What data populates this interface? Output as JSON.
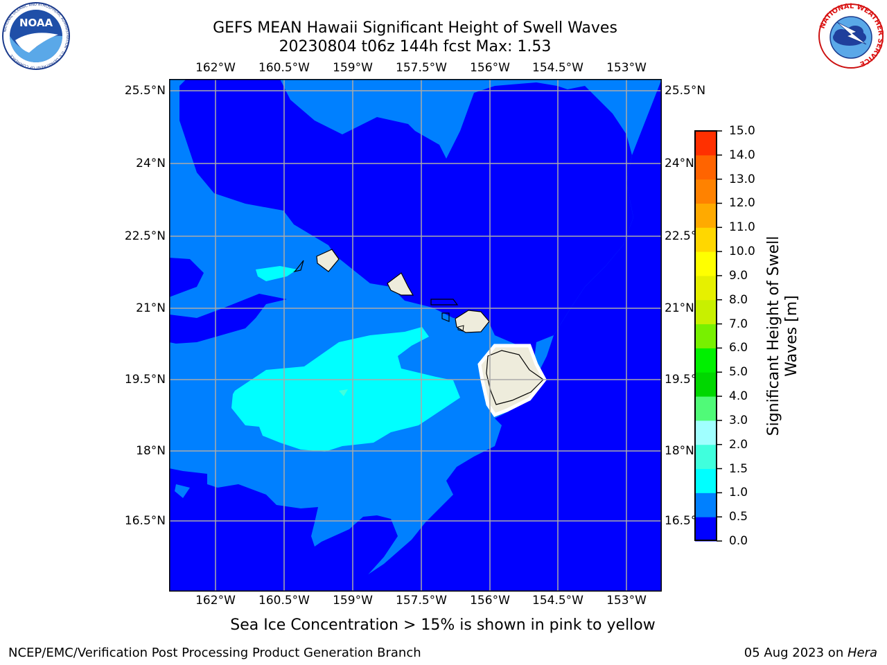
{
  "header": {
    "title_line1": "GEFS MEAN Hawaii Significant Height of Swell Waves",
    "title_line2": "20230804 t06z 144h fcst   Max: 1.53"
  },
  "logos": {
    "left": {
      "name": "noaa-logo",
      "text": "NOAA",
      "ring_text": "NATIONAL OCEANIC AND ATMOSPHERIC ADMINISTRATION · U.S. DEPARTMENT OF COMMERCE"
    },
    "right": {
      "name": "nws-logo",
      "ring_text": "NATIONAL WEATHER SERVICE"
    }
  },
  "map": {
    "longitude_ticks": [
      "162°W",
      "160.5°W",
      "159°W",
      "157.5°W",
      "156°W",
      "154.5°W",
      "153°W"
    ],
    "latitude_ticks": [
      "25.5°N",
      "24°N",
      "22.5°N",
      "21°N",
      "19.5°N",
      "18°N",
      "16.5°N"
    ],
    "lon_range": [
      -163,
      -152.3
    ],
    "lat_range": [
      15.3,
      25.7
    ],
    "grid": true,
    "land_color": "#eeecdc",
    "islands": [
      "Niihau",
      "Kauai",
      "Oahu",
      "Molokai",
      "Lanai",
      "Maui",
      "Kahoolawe",
      "Hawaii"
    ]
  },
  "colorbar": {
    "label_line1": "Significant Height of Swell",
    "label_line2": "Waves [m]",
    "levels": [
      "0.0",
      "0.5",
      "1.0",
      "1.5",
      "2.0",
      "3.0",
      "4.0",
      "5.0",
      "6.0",
      "7.0",
      "8.0",
      "9.0",
      "10.0",
      "11.0",
      "12.0",
      "13.0",
      "14.0",
      "15.0"
    ],
    "colors": [
      "#0000ff",
      "#0080ff",
      "#00ffff",
      "#40ffdd",
      "#a0ffff",
      "#50fa78",
      "#00d700",
      "#00f000",
      "#78f000",
      "#c8f000",
      "#e6f000",
      "#ffff00",
      "#ffd700",
      "#ffaa00",
      "#ff8200",
      "#ff6400",
      "#ff3000",
      "#ff0000"
    ]
  },
  "chart_data": {
    "type": "heatmap",
    "title": "GEFS MEAN Hawaii Significant Height of Swell Waves",
    "subtitle": "20230804 t06z 144h fcst   Max: 1.53",
    "x": [
      "162°W",
      "160.5°W",
      "159°W",
      "157.5°W",
      "156°W",
      "154.5°W",
      "153°W"
    ],
    "y": [
      "25.5°N",
      "24°N",
      "22.5°N",
      "21°N",
      "19.5°N",
      "18°N",
      "16.5°N"
    ],
    "max": 1.53,
    "units": "m",
    "legend": "right",
    "grid": true,
    "bins_shown": [
      {
        "range": "0.0-0.5",
        "color": "#0000ff"
      },
      {
        "range": "0.5-1.0",
        "color": "#0080ff"
      },
      {
        "range": "1.0-1.5",
        "color": "#00ffff"
      }
    ]
  },
  "notes": {
    "sea_ice": "Sea Ice Concentration > 15% is shown in pink to yellow"
  },
  "footer": {
    "left": "NCEP/EMC/Verification Post Processing Product Generation Branch",
    "date": "05 Aug 2023 on ",
    "machine": "Hera"
  }
}
